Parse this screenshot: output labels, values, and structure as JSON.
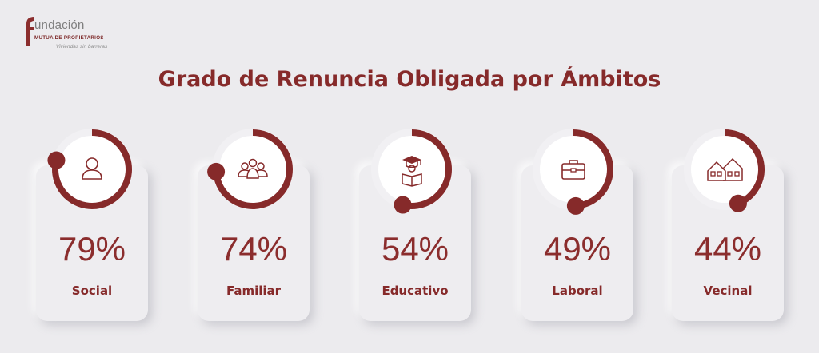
{
  "logo": {
    "brand": "undación",
    "subtitle": "MUTUA DE PROPIETARIOS",
    "tagline": "Viviendas sin barreras"
  },
  "title": "Grado de Renuncia Obligada por Ámbitos",
  "colors": {
    "accent": "#862a2a",
    "background": "#ecebee",
    "track": "#ffffff"
  },
  "chart_data": {
    "type": "radial-progress",
    "title": "Grado de Renuncia Obligada por Ámbitos",
    "categories": [
      "Social",
      "Familiar",
      "Educativo",
      "Laboral",
      "Vecinal"
    ],
    "values": [
      79,
      74,
      54,
      49,
      44
    ],
    "value_labels": [
      "79%",
      "74%",
      "54%",
      "49%",
      "44%"
    ],
    "unit": "%",
    "icons": [
      "person-icon",
      "family-icon",
      "student-icon",
      "briefcase-icon",
      "houses-icon"
    ]
  }
}
